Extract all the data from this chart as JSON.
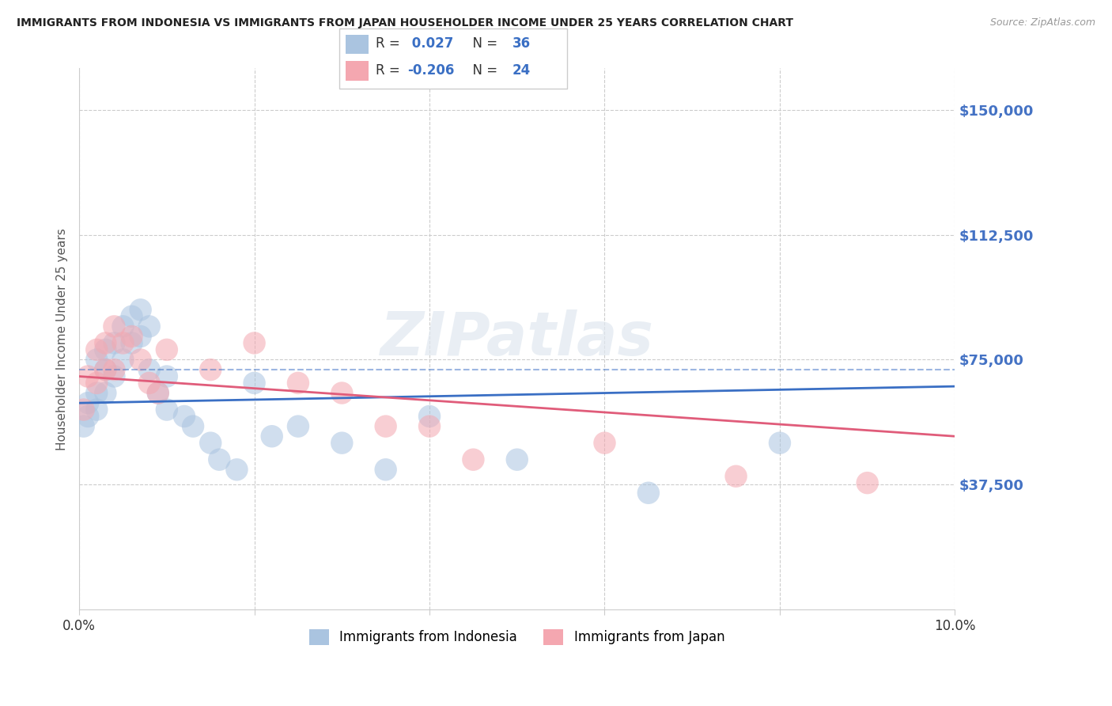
{
  "title": "IMMIGRANTS FROM INDONESIA VS IMMIGRANTS FROM JAPAN HOUSEHOLDER INCOME UNDER 25 YEARS CORRELATION CHART",
  "source": "Source: ZipAtlas.com",
  "ylabel": "Householder Income Under 25 years",
  "xlim": [
    0.0,
    0.1
  ],
  "ylim": [
    0,
    162500
  ],
  "yticks": [
    0,
    37500,
    75000,
    112500,
    150000
  ],
  "ytick_labels": [
    "",
    "$37,500",
    "$75,000",
    "$112,500",
    "$150,000"
  ],
  "xticks": [
    0.0,
    0.02,
    0.04,
    0.06,
    0.08,
    0.1
  ],
  "xtick_labels": [
    "0.0%",
    "",
    "",
    "",
    "",
    "10.0%"
  ],
  "grid_color": "#cccccc",
  "background_color": "#ffffff",
  "indonesia_color": "#aac4e0",
  "japan_color": "#f4a7b0",
  "indonesia_line_color": "#3a6fc4",
  "japan_line_color": "#e05c7a",
  "R_indonesia": "0.027",
  "N_indonesia": "36",
  "R_japan": "-0.206",
  "N_japan": "24",
  "watermark": "ZIPatlas",
  "indonesia_scatter_x": [
    0.0005,
    0.001,
    0.001,
    0.002,
    0.002,
    0.002,
    0.003,
    0.003,
    0.003,
    0.004,
    0.004,
    0.005,
    0.005,
    0.006,
    0.006,
    0.007,
    0.007,
    0.008,
    0.008,
    0.009,
    0.01,
    0.01,
    0.012,
    0.013,
    0.015,
    0.016,
    0.018,
    0.02,
    0.022,
    0.025,
    0.03,
    0.035,
    0.04,
    0.05,
    0.065,
    0.08
  ],
  "indonesia_scatter_y": [
    55000,
    62000,
    58000,
    75000,
    65000,
    60000,
    78000,
    72000,
    65000,
    80000,
    70000,
    85000,
    75000,
    88000,
    80000,
    90000,
    82000,
    85000,
    72000,
    65000,
    70000,
    60000,
    58000,
    55000,
    50000,
    45000,
    42000,
    68000,
    52000,
    55000,
    50000,
    42000,
    58000,
    45000,
    35000,
    50000
  ],
  "japan_scatter_x": [
    0.0005,
    0.001,
    0.002,
    0.002,
    0.003,
    0.003,
    0.004,
    0.004,
    0.005,
    0.006,
    0.007,
    0.008,
    0.009,
    0.01,
    0.015,
    0.02,
    0.025,
    0.03,
    0.035,
    0.04,
    0.045,
    0.06,
    0.075,
    0.09
  ],
  "japan_scatter_y": [
    60000,
    70000,
    78000,
    68000,
    80000,
    72000,
    85000,
    72000,
    80000,
    82000,
    75000,
    68000,
    65000,
    78000,
    72000,
    80000,
    68000,
    65000,
    55000,
    55000,
    45000,
    50000,
    40000,
    38000
  ],
  "indonesia_line_x0": 0.0,
  "indonesia_line_x1": 0.1,
  "indonesia_line_y0": 62000,
  "indonesia_line_y1": 67000,
  "japan_line_x0": 0.0,
  "japan_line_x1": 0.1,
  "japan_line_y0": 70000,
  "japan_line_y1": 52000,
  "dashed_line_x0": 0.0,
  "dashed_line_x1": 0.1,
  "dashed_line_y0": 72000,
  "dashed_line_y1": 72000,
  "ytick_color": "#4472c4",
  "title_color": "#222222",
  "source_color": "#999999",
  "legend_indonesia_label": "Immigrants from Indonesia",
  "legend_japan_label": "Immigrants from Japan"
}
